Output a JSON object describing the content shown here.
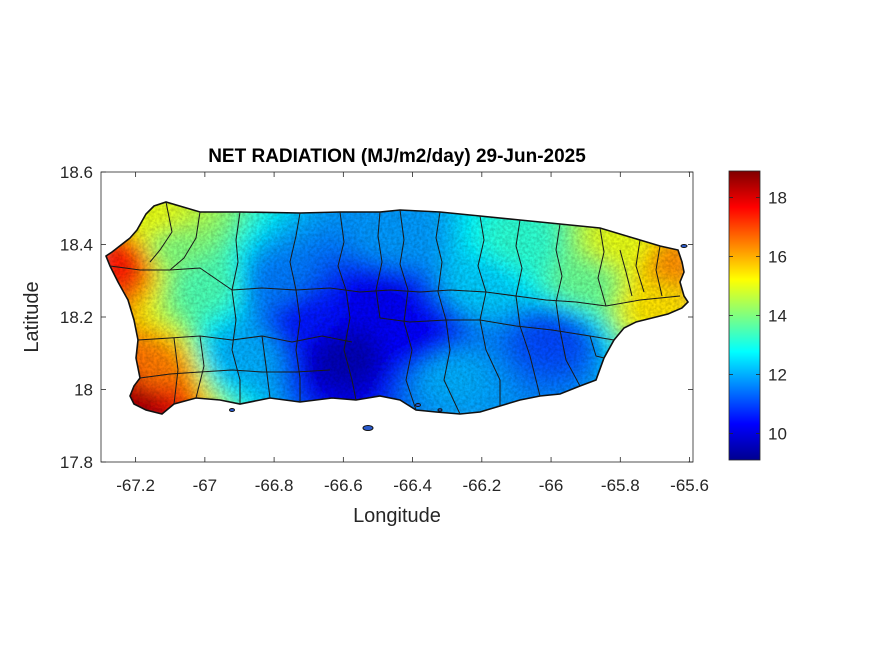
{
  "chart_data": {
    "type": "heatmap",
    "title": "NET RADIATION (MJ/m2/day) 29-Jun-2025",
    "xlabel": "Longitude",
    "ylabel": "Latitude",
    "xlim": [
      -67.3,
      -65.59
    ],
    "ylim": [
      17.8,
      18.6
    ],
    "x_ticks": [
      -67.2,
      -67,
      -66.8,
      -66.6,
      -66.4,
      -66.2,
      -66,
      -65.8,
      -65.6
    ],
    "x_tick_labels": [
      "-67.2",
      "-67",
      "-66.8",
      "-66.6",
      "-66.4",
      "-66.2",
      "-66",
      "-65.8",
      "-65.6"
    ],
    "y_ticks": [
      17.8,
      18,
      18.2,
      18.4,
      18.6
    ],
    "y_tick_labels": [
      "17.8",
      "18",
      "18.2",
      "18.4",
      "18.6"
    ],
    "colormap": "jet",
    "colorbar": {
      "min": 9.1,
      "max": 18.9,
      "ticks": [
        10,
        12,
        14,
        16,
        18
      ],
      "tick_labels": [
        "10",
        "12",
        "14",
        "16",
        "18"
      ]
    },
    "grid": false,
    "region": "Puerto Rico (municipality boundaries)",
    "field_samples": [
      {
        "lon": -67.2,
        "lat": 17.98,
        "value": 18.5
      },
      {
        "lon": -67.25,
        "lat": 18.36,
        "value": 17.5
      },
      {
        "lon": -67.15,
        "lat": 18.05,
        "value": 16.5
      },
      {
        "lon": -67.1,
        "lat": 18.4,
        "value": 14.0
      },
      {
        "lon": -67.15,
        "lat": 18.47,
        "value": 15.0
      },
      {
        "lon": -67.0,
        "lat": 18.3,
        "value": 13.5
      },
      {
        "lon": -66.9,
        "lat": 18.1,
        "value": 12.0
      },
      {
        "lon": -66.8,
        "lat": 18.3,
        "value": 11.5
      },
      {
        "lon": -66.7,
        "lat": 18.2,
        "value": 10.5
      },
      {
        "lon": -66.6,
        "lat": 18.1,
        "value": 9.6
      },
      {
        "lon": -66.5,
        "lat": 18.25,
        "value": 10.2
      },
      {
        "lon": -66.4,
        "lat": 18.15,
        "value": 10.3
      },
      {
        "lon": -66.45,
        "lat": 18.42,
        "value": 11.8
      },
      {
        "lon": -66.3,
        "lat": 18.05,
        "value": 12.0
      },
      {
        "lon": -66.2,
        "lat": 18.3,
        "value": 12.3
      },
      {
        "lon": -66.1,
        "lat": 18.4,
        "value": 13.2
      },
      {
        "lon": -66.0,
        "lat": 18.15,
        "value": 11.0
      },
      {
        "lon": -65.9,
        "lat": 18.3,
        "value": 13.8
      },
      {
        "lon": -65.8,
        "lat": 18.4,
        "value": 15.0
      },
      {
        "lon": -65.7,
        "lat": 18.25,
        "value": 15.5
      },
      {
        "lon": -65.65,
        "lat": 18.35,
        "value": 16.3
      }
    ]
  }
}
